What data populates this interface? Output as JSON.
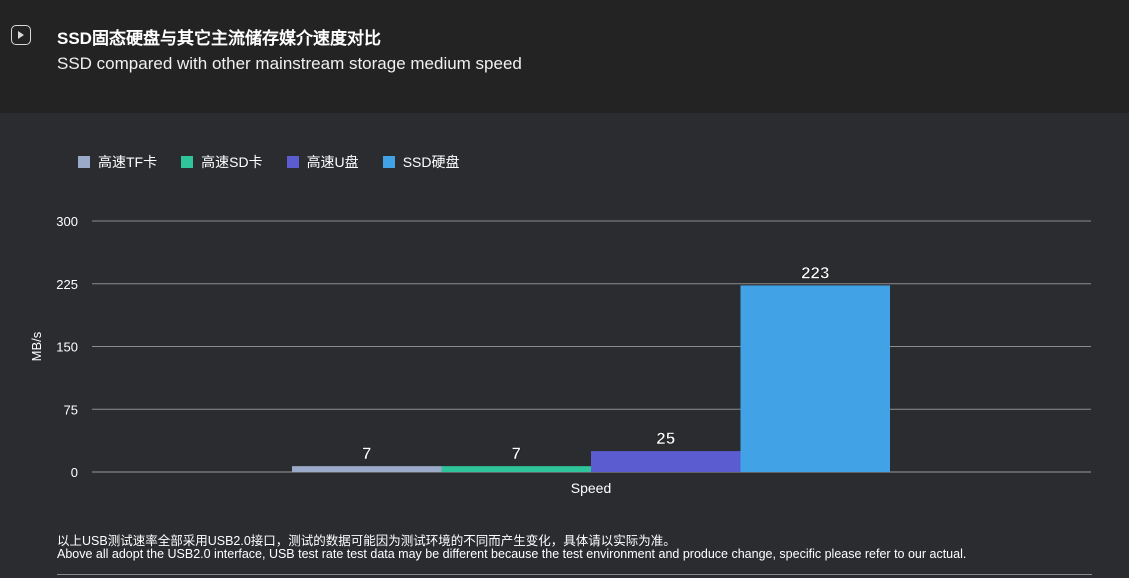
{
  "header": {
    "title": "SSD固态硬盘与其它主流储存媒介速度对比",
    "subtitle": "SSD compared with other mainstream storage medium speed",
    "icon": "play-icon"
  },
  "chart_data": {
    "type": "bar",
    "categories": [
      "Speed"
    ],
    "series": [
      {
        "name": "高速TF卡",
        "values": [
          7
        ],
        "color": "#9aaac8"
      },
      {
        "name": "高速SD卡",
        "values": [
          7
        ],
        "color": "#2fc49a"
      },
      {
        "name": "高速U盘",
        "values": [
          25
        ],
        "color": "#5b5cd0"
      },
      {
        "name": "SSD硬盘",
        "values": [
          223
        ],
        "color": "#41a3e6"
      }
    ],
    "xlabel": "",
    "ylabel": "MB/s",
    "ylim": [
      0,
      300
    ],
    "yticks": [
      "0",
      "75",
      "150",
      "225",
      "300"
    ],
    "grid": true,
    "legend": "top-left",
    "data_labels": true
  },
  "footer": {
    "note_cn": "以上USB测试速率全部采用USB2.0接口，测试的数据可能因为测试环境的不同而产生变化，具体请以实际为准。",
    "note_en": "Above all adopt the USB2.0 interface, USB test rate test data may be different because the test environment and produce change, specific please refer to our actual."
  }
}
